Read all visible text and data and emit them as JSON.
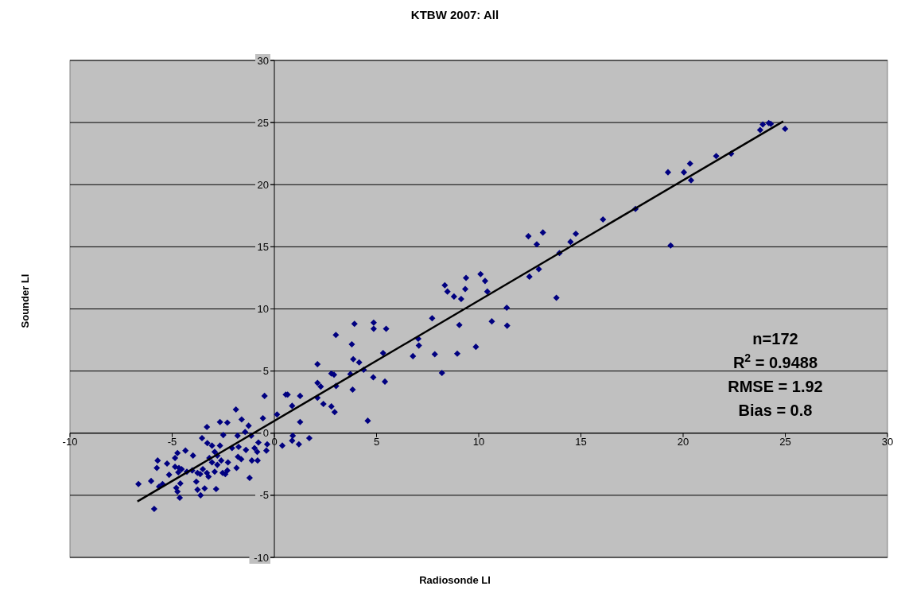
{
  "chart_data": {
    "type": "scatter",
    "title": "KTBW 2007: All",
    "xlabel": "Radiosonde LI",
    "ylabel": "Sounder LI",
    "xlim": [
      -10,
      30
    ],
    "xticks": [
      -10,
      -5,
      0,
      5,
      10,
      15,
      20,
      25,
      30
    ],
    "ylim": [
      -10,
      30
    ],
    "yticks": [
      -10,
      -5,
      0,
      5,
      10,
      15,
      20,
      25,
      30
    ],
    "grid": "y",
    "annotations": [
      "n=172",
      "R$^{2}$ = 0.9488",
      "RMSE = 1.92",
      "Bias = 0.8"
    ],
    "series": [
      {
        "color": "#000080",
        "marker": "diamond",
        "x": [
          -0.48,
          0.56,
          0.65,
          1.26,
          0.87,
          0.13,
          -1.88,
          -1.6,
          -2.66,
          -2.3,
          -0.56,
          -1.26,
          1.26,
          -3.3,
          -1.43,
          -2.5,
          -1.8,
          -1.13,
          -3.54,
          -3.28,
          -0.78,
          0.9,
          0.87,
          1.71,
          0.39,
          1.2,
          -0.35,
          -3.05,
          -2.66,
          -2.07,
          -1.75,
          -1.39,
          -0.97,
          -0.84,
          -0.39,
          -4.35,
          -3.98,
          -2.92,
          -2.79,
          -3.18,
          -2.6,
          -2.27,
          -1.78,
          -1.62,
          -1.1,
          -0.82,
          -3.05,
          -2.79,
          -5.71,
          -4.74,
          -4.86,
          -5.25,
          -5.75,
          -4.86,
          -4.67,
          -4.54,
          -4.28,
          -4.02,
          -3.76,
          -3.5,
          -3.3,
          -3.63,
          -2.92,
          -2.53,
          -2.3,
          -2.4,
          -1.85,
          -5.15,
          -4.7,
          -3.22,
          -1.21,
          -6.65,
          -6.03,
          -5.64,
          -5.47,
          -4.6,
          -4.8,
          -3.82,
          -3.76,
          -3.41,
          -2.85,
          -4.74,
          -3.61,
          -4.63,
          -5.88,
          3.92,
          4.86,
          4.86,
          5.47,
          3.01,
          3.79,
          3.86,
          4.15,
          5.32,
          2.11,
          4.37,
          2.79,
          2.92,
          3.72,
          4.84,
          5.41,
          2.11,
          2.27,
          3.02,
          3.83,
          2.11,
          2.4,
          2.79,
          2.95,
          4.57,
          7.72,
          9.05,
          9.86,
          7.04,
          7.07,
          6.78,
          7.85,
          8.95,
          8.2,
          12.43,
          13.14,
          12.84,
          14.75,
          14.49,
          13.95,
          12.94,
          12.48,
          13.8,
          8.34,
          8.47,
          8.79,
          9.14,
          9.38,
          9.34,
          10.09,
          10.31,
          10.42,
          11.37,
          11.39,
          10.64,
          24.99,
          24.19,
          24.29,
          23.9,
          23.77,
          22.35,
          21.62,
          20.34,
          20.04,
          19.26,
          20.39,
          19.39,
          17.67,
          16.08
        ],
        "values": [
          3.0,
          3.1,
          3.1,
          3.0,
          2.2,
          1.5,
          1.9,
          1.1,
          0.9,
          0.85,
          1.2,
          0.6,
          0.9,
          0.5,
          0.1,
          -0.15,
          -0.2,
          -0.2,
          -0.4,
          -0.8,
          -0.75,
          -0.2,
          -0.6,
          -0.4,
          -1.0,
          -0.9,
          -0.9,
          -1.0,
          -1.0,
          -1.2,
          -1.1,
          -1.35,
          -1.2,
          -1.5,
          -1.4,
          -1.4,
          -1.8,
          -1.5,
          -1.8,
          -2.0,
          -2.2,
          -2.35,
          -1.9,
          -2.1,
          -2.2,
          -2.2,
          -2.35,
          -2.55,
          -2.2,
          -1.6,
          -2.0,
          -2.45,
          -2.8,
          -2.7,
          -2.8,
          -2.9,
          -3.1,
          -3.0,
          -3.2,
          -2.9,
          -3.2,
          -3.3,
          -3.1,
          -3.2,
          -3.0,
          -3.3,
          -2.8,
          -3.35,
          -3.15,
          -3.5,
          -3.6,
          -4.1,
          -3.85,
          -4.3,
          -4.1,
          -4.05,
          -4.4,
          -3.9,
          -4.55,
          -4.45,
          -4.5,
          -4.7,
          -5.0,
          -5.2,
          -6.1,
          8.8,
          8.9,
          8.4,
          8.4,
          7.9,
          7.15,
          5.95,
          5.7,
          6.45,
          5.55,
          5.1,
          4.8,
          4.7,
          4.75,
          4.5,
          4.15,
          4.05,
          3.75,
          3.8,
          3.5,
          2.85,
          2.35,
          2.15,
          1.7,
          1.0,
          9.25,
          8.7,
          6.95,
          7.6,
          7.05,
          6.2,
          6.35,
          6.4,
          4.85,
          15.85,
          16.15,
          15.2,
          16.05,
          15.4,
          14.5,
          13.2,
          12.6,
          10.9,
          11.9,
          11.4,
          11.0,
          10.8,
          12.5,
          11.6,
          12.8,
          12.25,
          11.4,
          10.1,
          8.65,
          9.0,
          24.5,
          24.96,
          24.9,
          24.85,
          24.4,
          22.5,
          22.3,
          21.7,
          21.0,
          21.0,
          20.35,
          15.1,
          18.05,
          17.2
        ]
      },
      {
        "type": "line",
        "color": "#000000",
        "x": [
          -6.7,
          24.9
        ],
        "values": [
          -5.5,
          25.1
        ]
      }
    ]
  }
}
